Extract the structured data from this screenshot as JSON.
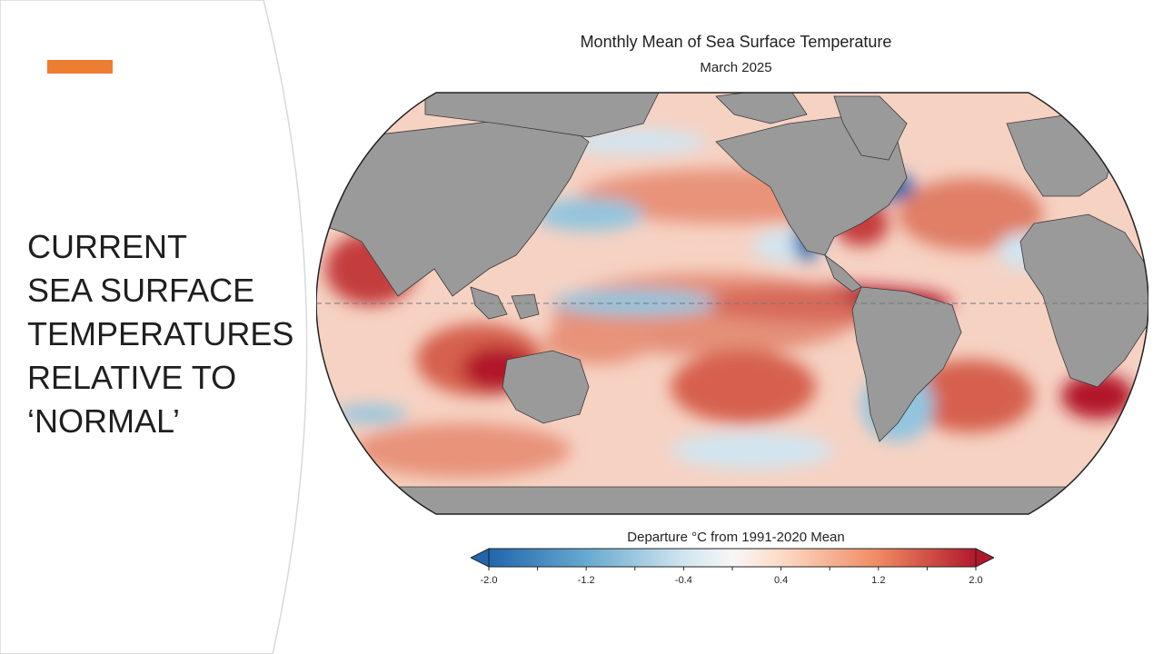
{
  "slide": {
    "title_lines": [
      "CURRENT",
      "SEA SURFACE",
      "TEMPERATURES",
      "RELATIVE TO",
      "‘NORMAL’"
    ],
    "accent_color": "#ED7D31"
  },
  "chart_data": {
    "type": "heatmap",
    "title": "Monthly Mean of Sea Surface Temperature",
    "subtitle": "March 2025",
    "colorbar_label": "Departure °C from 1991-2020 Mean",
    "colorbar_ticks": [
      "-2.0",
      "-1.2",
      "-0.4",
      "0.4",
      "1.2",
      "2.0"
    ],
    "colorbar_range": [
      -2.0,
      2.0
    ],
    "colors": {
      "cold": "#2166ac",
      "cool": "#92c5de",
      "neutral": "#f7f7f7",
      "warm": "#f4a582",
      "hot": "#b2182b",
      "land": "#9a9a9a"
    }
  }
}
